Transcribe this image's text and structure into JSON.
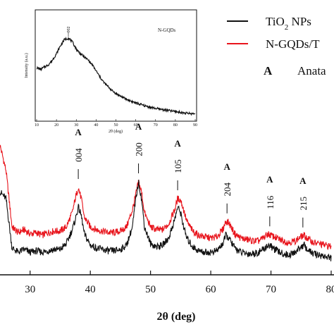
{
  "chart_data": {
    "type": "line",
    "main": {
      "xlabel": "2θ (deg)",
      "xlim": [
        25,
        80
      ],
      "x_ticks": [
        "30",
        "40",
        "50",
        "60",
        "70",
        "80"
      ],
      "series": [
        {
          "name": "N-GQDs/T",
          "color": "#e8141c",
          "points": [
            [
              25,
              0.78
            ],
            [
              26,
              0.6
            ],
            [
              27,
              0.2
            ],
            [
              28,
              0.16
            ],
            [
              29,
              0.18
            ],
            [
              30,
              0.15
            ],
            [
              31,
              0.16
            ],
            [
              32,
              0.14
            ],
            [
              33,
              0.16
            ],
            [
              34,
              0.17
            ],
            [
              35,
              0.17
            ],
            [
              36,
              0.2
            ],
            [
              37,
              0.3
            ],
            [
              37.5,
              0.4
            ],
            [
              38,
              0.48
            ],
            [
              38.5,
              0.4
            ],
            [
              39,
              0.27
            ],
            [
              40,
              0.2
            ],
            [
              41,
              0.18
            ],
            [
              42,
              0.17
            ],
            [
              43,
              0.16
            ],
            [
              44,
              0.16
            ],
            [
              45,
              0.17
            ],
            [
              46,
              0.2
            ],
            [
              47,
              0.32
            ],
            [
              47.5,
              0.42
            ],
            [
              48,
              0.52
            ],
            [
              48.5,
              0.45
            ],
            [
              49,
              0.3
            ],
            [
              50,
              0.2
            ],
            [
              51,
              0.18
            ],
            [
              52,
              0.18
            ],
            [
              53,
              0.22
            ],
            [
              54,
              0.32
            ],
            [
              54.5,
              0.4
            ],
            [
              55,
              0.39
            ],
            [
              55.5,
              0.32
            ],
            [
              56,
              0.24
            ],
            [
              57,
              0.17
            ],
            [
              58,
              0.14
            ],
            [
              59,
              0.13
            ],
            [
              60,
              0.12
            ],
            [
              61,
              0.13
            ],
            [
              62,
              0.18
            ],
            [
              62.5,
              0.24
            ],
            [
              63,
              0.23
            ],
            [
              64,
              0.15
            ],
            [
              65,
              0.12
            ],
            [
              66,
              0.11
            ],
            [
              67,
              0.1
            ],
            [
              68,
              0.1
            ],
            [
              69,
              0.13
            ],
            [
              69.5,
              0.15
            ],
            [
              70,
              0.14
            ],
            [
              71,
              0.12
            ],
            [
              72,
              0.1
            ],
            [
              73,
              0.09
            ],
            [
              74,
              0.1
            ],
            [
              75,
              0.13
            ],
            [
              75.5,
              0.14
            ],
            [
              76,
              0.12
            ],
            [
              77,
              0.09
            ],
            [
              78,
              0.08
            ],
            [
              79,
              0.07
            ],
            [
              80,
              0.06
            ]
          ]
        },
        {
          "name": "TiO2 NPs",
          "color": "#111111",
          "points": [
            [
              25,
              0.45
            ],
            [
              26,
              0.4
            ],
            [
              27,
              0.05
            ],
            [
              28,
              0.02
            ],
            [
              29,
              0.04
            ],
            [
              30,
              0.02
            ],
            [
              31,
              0.03
            ],
            [
              32,
              0.02
            ],
            [
              33,
              0.03
            ],
            [
              34,
              0.04
            ],
            [
              35,
              0.04
            ],
            [
              36,
              0.08
            ],
            [
              37,
              0.18
            ],
            [
              37.5,
              0.25
            ],
            [
              38,
              0.34
            ],
            [
              38.5,
              0.28
            ],
            [
              39,
              0.15
            ],
            [
              40,
              0.07
            ],
            [
              41,
              0.05
            ],
            [
              42,
              0.04
            ],
            [
              43,
              0.03
            ],
            [
              44,
              0.03
            ],
            [
              45,
              0.04
            ],
            [
              46,
              0.07
            ],
            [
              47,
              0.2
            ],
            [
              47.5,
              0.38
            ],
            [
              48,
              0.52
            ],
            [
              48.5,
              0.4
            ],
            [
              49,
              0.2
            ],
            [
              50,
              0.08
            ],
            [
              51,
              0.06
            ],
            [
              52,
              0.07
            ],
            [
              53,
              0.12
            ],
            [
              54,
              0.25
            ],
            [
              54.5,
              0.34
            ],
            [
              55,
              0.3
            ],
            [
              55.5,
              0.2
            ],
            [
              56,
              0.12
            ],
            [
              57,
              0.06
            ],
            [
              58,
              0.03
            ],
            [
              59,
              0.02
            ],
            [
              60,
              0.02
            ],
            [
              61,
              0.03
            ],
            [
              62,
              0.08
            ],
            [
              62.5,
              0.14
            ],
            [
              63,
              0.12
            ],
            [
              64,
              0.05
            ],
            [
              65,
              0.02
            ],
            [
              66,
              0.01
            ],
            [
              67,
              0.01
            ],
            [
              68,
              0.02
            ],
            [
              69,
              0.05
            ],
            [
              69.5,
              0.07
            ],
            [
              70,
              0.06
            ],
            [
              71,
              0.03
            ],
            [
              72,
              0.01
            ],
            [
              73,
              0.0
            ],
            [
              74,
              0.02
            ],
            [
              75,
              0.06
            ],
            [
              75.5,
              0.07
            ],
            [
              76,
              0.04
            ],
            [
              77,
              0.01
            ],
            [
              78,
              0.0
            ],
            [
              79,
              -0.01
            ],
            [
              80,
              -0.02
            ]
          ]
        }
      ],
      "peaks": [
        {
          "x": 38,
          "label": "004",
          "marker": "A"
        },
        {
          "x": 48,
          "label": "200",
          "marker": "A"
        },
        {
          "x": 54.5,
          "label": "105",
          "marker": "A"
        },
        {
          "x": 62.7,
          "label": "204",
          "marker": "A"
        },
        {
          "x": 69.8,
          "label": "116",
          "marker": "A"
        },
        {
          "x": 75.3,
          "label": "215",
          "marker": "A"
        }
      ]
    },
    "legend": {
      "items": [
        {
          "label": "TiO",
          "sub": "2",
          "label_after": " NPs",
          "color": "#111111"
        },
        {
          "label": "N-GQDs/T",
          "sub": "",
          "label_after": "",
          "color": "#e8141c"
        }
      ],
      "marker_entry": {
        "symbol": "A",
        "label": "Anata"
      }
    },
    "inset": {
      "title": "N-GQDs",
      "xlabel": "2θ (deg)",
      "ylabel": "Intensity (a.u.)",
      "xlim": [
        10,
        90
      ],
      "x_ticks": [
        "10",
        "20",
        "30",
        "40",
        "50",
        "60",
        "70",
        "80",
        "90"
      ],
      "peak_label": "002",
      "peak_x": 26,
      "series": {
        "color": "#111111",
        "points": [
          [
            10,
            0.62
          ],
          [
            12,
            0.6
          ],
          [
            14,
            0.63
          ],
          [
            16,
            0.66
          ],
          [
            18,
            0.72
          ],
          [
            20,
            0.8
          ],
          [
            22,
            0.9
          ],
          [
            24,
            0.98
          ],
          [
            26,
            1.0
          ],
          [
            28,
            0.95
          ],
          [
            30,
            0.86
          ],
          [
            32,
            0.8
          ],
          [
            34,
            0.76
          ],
          [
            36,
            0.72
          ],
          [
            38,
            0.66
          ],
          [
            40,
            0.58
          ],
          [
            42,
            0.5
          ],
          [
            44,
            0.43
          ],
          [
            46,
            0.38
          ],
          [
            48,
            0.33
          ],
          [
            50,
            0.29
          ],
          [
            55,
            0.22
          ],
          [
            60,
            0.17
          ],
          [
            65,
            0.13
          ],
          [
            70,
            0.1
          ],
          [
            75,
            0.08
          ],
          [
            80,
            0.06
          ],
          [
            85,
            0.04
          ],
          [
            90,
            0.03
          ]
        ]
      }
    }
  }
}
